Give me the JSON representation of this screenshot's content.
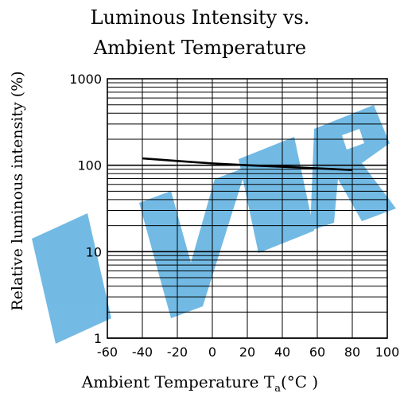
{
  "chart_data": {
    "type": "line",
    "title_lines": [
      "Luminous Intensity vs.",
      "Ambient Temperature"
    ],
    "ylabel": "Relative luminous intensity (%)",
    "xlabel": "Ambient Temperature T",
    "xlabel_sub": "a",
    "xlabel_unit": "(°C )",
    "yscale": "log",
    "ylim": [
      1,
      1000
    ],
    "xlim": [
      -60,
      100
    ],
    "x_ticks": [
      -60,
      -40,
      -20,
      0,
      20,
      40,
      60,
      80,
      100
    ],
    "x_tick_labels": [
      "-60",
      "-40",
      "-20",
      "0",
      "20",
      "40",
      "60",
      "80",
      "100"
    ],
    "y_ticks": [
      1,
      10,
      100,
      1000
    ],
    "y_tick_labels": [
      "1",
      "10",
      "100",
      "1000"
    ],
    "grid": true,
    "series": [
      {
        "x": [
          -40,
          -20,
          0,
          20,
          40,
          60,
          80
        ],
        "y": [
          120,
          112,
          105,
          100,
          96,
          92,
          88
        ]
      }
    ],
    "watermark": "EVER",
    "watermark_color": "#5aaee0"
  }
}
